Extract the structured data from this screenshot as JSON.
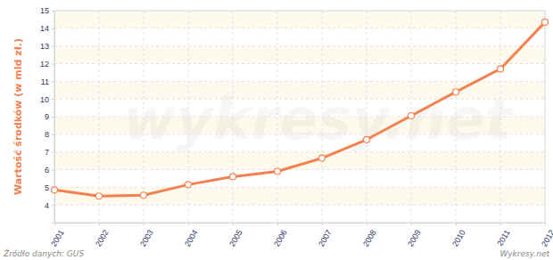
{
  "chart_data": {
    "type": "line",
    "y_label": "Wartość środków (w mld zł.)",
    "annotations": [
      "Źródło danych:  GUS",
      "Wykresy.net",
      "wykresy.net"
    ],
    "x": [
      2001,
      2002,
      2003,
      2004,
      2005,
      2006,
      2007,
      2008,
      2009,
      2010,
      2011,
      2012
    ],
    "values": [
      4.85,
      4.5,
      4.55,
      5.15,
      5.6,
      5.9,
      6.65,
      7.7,
      9.05,
      10.4,
      11.7,
      14.35
    ],
    "xlim": [
      2001,
      2012
    ],
    "xticks": [
      2001,
      2002,
      2003,
      2004,
      2005,
      2006,
      2007,
      2008,
      2009,
      2010,
      2011,
      2012
    ],
    "ylim": [
      3,
      15
    ],
    "yticks": [
      4,
      5,
      6,
      7,
      8,
      9,
      10,
      11,
      12,
      13,
      14,
      15
    ],
    "color": "#f4804f",
    "marker": "circle",
    "grid": true
  }
}
